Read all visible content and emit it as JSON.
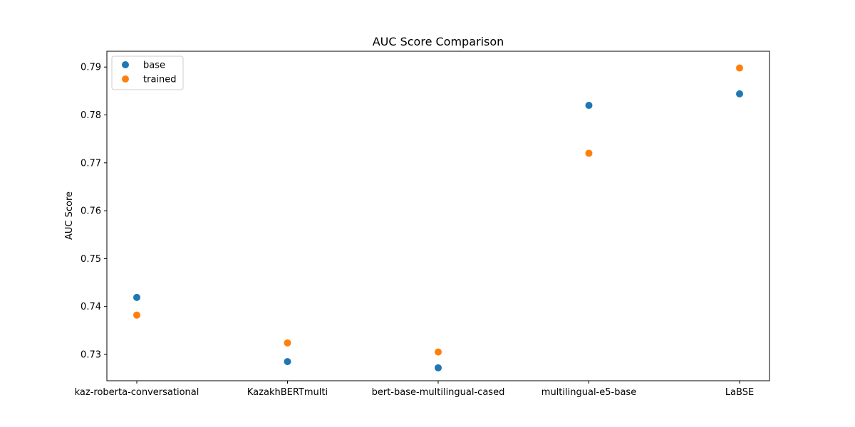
{
  "chart_data": {
    "type": "scatter",
    "title": "AUC Score Comparison",
    "xlabel": "",
    "ylabel": "AUC Score",
    "categories": [
      "kaz-roberta-conversational",
      "KazakhBERTmulti",
      "bert-base-multilingual-cased",
      "multilingual-e5-base",
      "LaBSE"
    ],
    "series": [
      {
        "name": "base",
        "color": "#1f77b4",
        "values": [
          0.7419,
          0.7285,
          0.7272,
          0.782,
          0.7844
        ]
      },
      {
        "name": "trained",
        "color": "#ff7f0e",
        "values": [
          0.7382,
          0.7324,
          0.7305,
          0.772,
          0.7898
        ]
      }
    ],
    "ylim": [
      0.7245,
      0.7933
    ],
    "yticks": [
      "0.73",
      "0.74",
      "0.75",
      "0.76",
      "0.77",
      "0.78",
      "0.79"
    ],
    "grid": false,
    "legend_position": "top-left"
  }
}
